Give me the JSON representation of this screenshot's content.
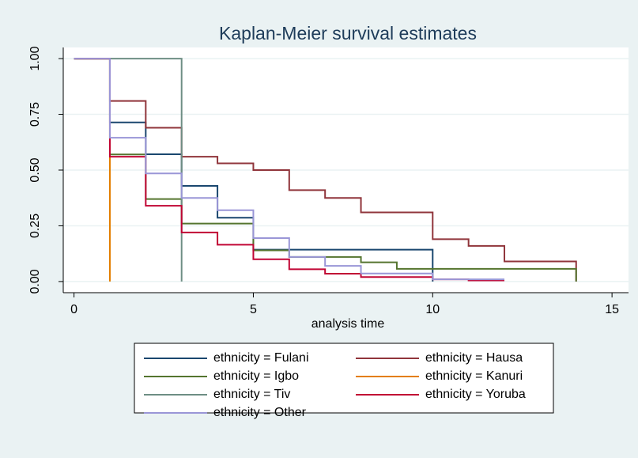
{
  "chart_data": {
    "type": "line",
    "step": "post",
    "title": "Kaplan-Meier survival estimates",
    "x_label": "analysis time",
    "xlim": [
      -0.3,
      15.46
    ],
    "xticks": [
      0,
      5,
      10,
      15
    ],
    "ylim": [
      -0.05,
      1.05
    ],
    "yticks": [
      {
        "value": 0,
        "label": "0.00"
      },
      {
        "value": 0.25,
        "label": "0.25"
      },
      {
        "value": 0.5,
        "label": "0.50"
      },
      {
        "value": 0.75,
        "label": "0.75"
      },
      {
        "value": 1,
        "label": "1.00"
      }
    ],
    "grid": true,
    "legend": "bottom",
    "series": [
      {
        "name": "ethnicity = Fulani",
        "color": "#1a476f",
        "x": [
          0,
          1,
          2,
          3,
          4,
          5,
          10
        ],
        "values": [
          1,
          0.714,
          0.571,
          0.429,
          0.286,
          0.143,
          0
        ]
      },
      {
        "name": "ethnicity = Hausa",
        "color": "#90353b",
        "x": [
          0,
          1,
          2,
          3,
          4,
          5,
          6,
          7,
          8,
          10,
          11,
          12,
          14
        ],
        "values": [
          1,
          0.81,
          0.69,
          0.56,
          0.53,
          0.5,
          0.41,
          0.375,
          0.31,
          0.19,
          0.16,
          0.09,
          0
        ]
      },
      {
        "name": "ethnicity = Igbo",
        "color": "#55752f",
        "x": [
          0,
          1,
          2,
          3,
          5,
          6,
          8,
          9,
          14
        ],
        "values": [
          1,
          0.57,
          0.37,
          0.26,
          0.14,
          0.11,
          0.086,
          0.057,
          0
        ]
      },
      {
        "name": "ethnicity = Kanuri",
        "color": "#e37e00",
        "x": [
          0,
          1
        ],
        "values": [
          1,
          0
        ]
      },
      {
        "name": "ethnicity = Tiv",
        "color": "#6e8e84",
        "x": [
          0,
          3
        ],
        "values": [
          1,
          0
        ]
      },
      {
        "name": "ethnicity = Yoruba",
        "color": "#c10534",
        "x": [
          0,
          1,
          2,
          3,
          4,
          5,
          6,
          7,
          8,
          10,
          11,
          12
        ],
        "values": [
          1,
          0.56,
          0.34,
          0.22,
          0.165,
          0.1,
          0.055,
          0.035,
          0.02,
          0.01,
          0.005,
          0.005
        ]
      },
      {
        "name": "ethnicity = Other",
        "color": "#9a96d7",
        "x": [
          0,
          1,
          2,
          3,
          4,
          5,
          6,
          7,
          8,
          10,
          12
        ],
        "values": [
          1,
          0.645,
          0.485,
          0.375,
          0.32,
          0.195,
          0.11,
          0.07,
          0.036,
          0.01,
          0.01
        ]
      }
    ]
  }
}
